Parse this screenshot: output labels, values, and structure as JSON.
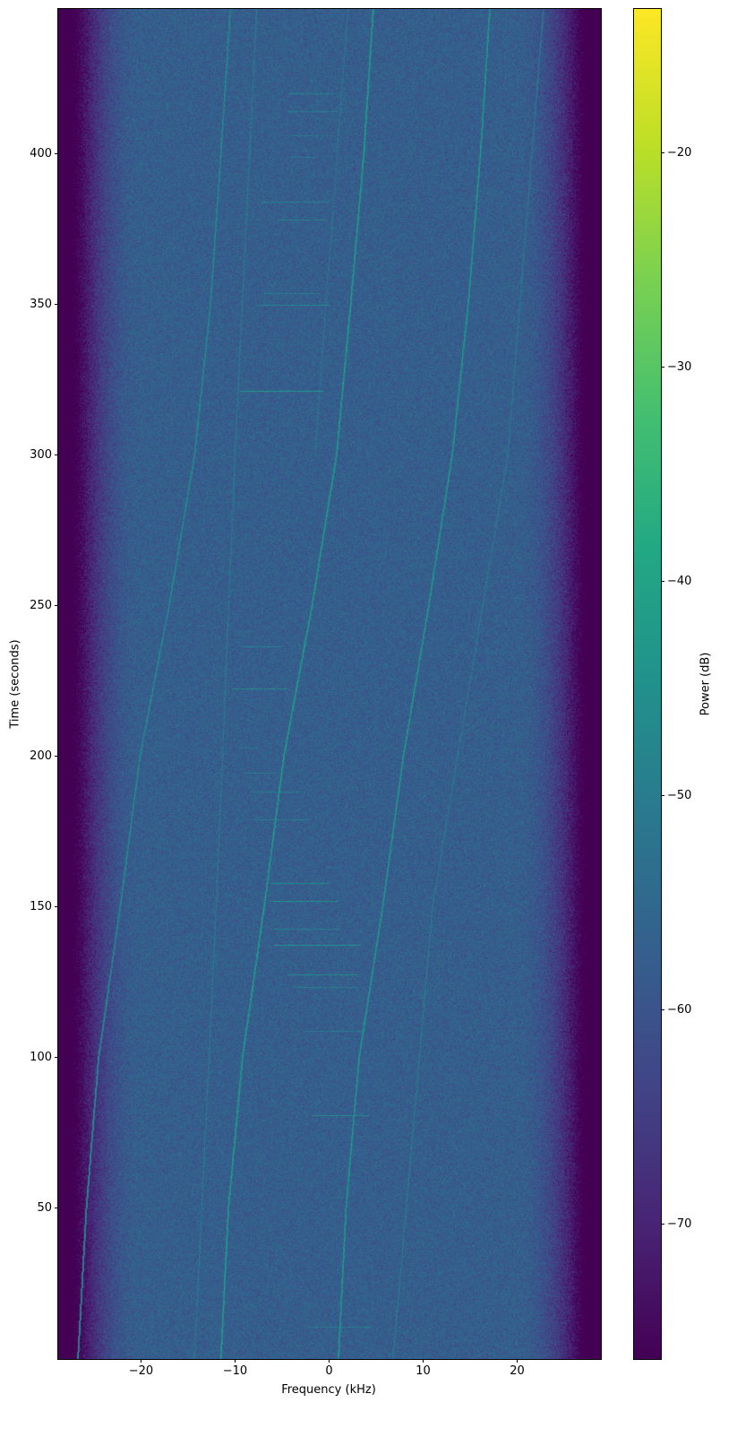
{
  "chart_data": {
    "type": "heatmap",
    "title": "",
    "xlabel": "Frequency (kHz)",
    "ylabel": "Time (seconds)",
    "colorbar_label": "Power (dB)",
    "colormap": "viridis",
    "xlim": [
      -28.8,
      28.9
    ],
    "ylim": [
      0,
      448
    ],
    "clim": [
      -76.3,
      -13.3
    ],
    "xticks": [
      -20,
      -10,
      0,
      10,
      20
    ],
    "xtick_labels": [
      "−20",
      "−10",
      "0",
      "10",
      "20"
    ],
    "yticks": [
      50,
      100,
      150,
      200,
      250,
      300,
      350,
      400
    ],
    "ytick_labels": [
      "50",
      "100",
      "150",
      "200",
      "250",
      "300",
      "350",
      "400"
    ],
    "cticks": [
      -20,
      -30,
      -40,
      -50,
      -60,
      -70
    ],
    "ctick_labels": [
      "−20",
      "−30",
      "−40",
      "−50",
      "−60",
      "−70"
    ],
    "noise_floor_db": -57.5,
    "passband_khz": [
      -20,
      20
    ],
    "stopband_edge_khz": 26.5,
    "traces": [
      {
        "level_db": -41,
        "points": [
          [
            0,
            -11.5
          ],
          [
            50,
            -10.7
          ],
          [
            100,
            -9.2
          ],
          [
            150,
            -6.9
          ],
          [
            200,
            -4.8
          ],
          [
            250,
            -1.8
          ],
          [
            300,
            0.8
          ],
          [
            350,
            2.3
          ],
          [
            400,
            3.7
          ],
          [
            448,
            4.7
          ]
        ]
      },
      {
        "level_db": -42,
        "points": [
          [
            0,
            1.0
          ],
          [
            50,
            1.8
          ],
          [
            100,
            3.2
          ],
          [
            150,
            5.7
          ],
          [
            200,
            7.9
          ],
          [
            250,
            10.6
          ],
          [
            300,
            13.1
          ],
          [
            350,
            14.8
          ],
          [
            400,
            16.1
          ],
          [
            448,
            17.1
          ]
        ]
      },
      {
        "level_db": -45,
        "points": [
          [
            0,
            -26.7
          ],
          [
            50,
            -25.8
          ],
          [
            100,
            -24.5
          ],
          [
            150,
            -22.2
          ],
          [
            200,
            -20.1
          ],
          [
            250,
            -17.0
          ],
          [
            300,
            -14.3
          ],
          [
            350,
            -12.6
          ],
          [
            400,
            -11.5
          ],
          [
            448,
            -10.5
          ]
        ]
      },
      {
        "level_db": -50,
        "points": [
          [
            0,
            -14.3
          ],
          [
            150,
            -12.0
          ],
          [
            300,
            -10.0
          ],
          [
            448,
            -7.7
          ]
        ]
      },
      {
        "level_db": -50,
        "points": [
          [
            0,
            6.8
          ],
          [
            150,
            11.0
          ],
          [
            300,
            19.0
          ],
          [
            448,
            22.8
          ]
        ]
      },
      {
        "level_db": -51,
        "points": [
          [
            300,
            -1.5
          ],
          [
            448,
            2.0
          ]
        ]
      }
    ],
    "bursts": [
      {
        "t": 10.7,
        "f": [
          -2.2,
          4.4
        ],
        "level_db": -50
      },
      {
        "t": 81,
        "f": [
          -1.8,
          4.2
        ],
        "level_db": -46
      },
      {
        "t": 109,
        "f": [
          -2.6,
          3.7
        ],
        "level_db": -50
      },
      {
        "t": 123.4,
        "f": [
          -3.7,
          2.9
        ],
        "level_db": -49
      },
      {
        "t": 127.6,
        "f": [
          -4.4,
          2.9
        ],
        "level_db": -45
      },
      {
        "t": 137.5,
        "f": [
          -5.9,
          3.3
        ],
        "level_db": -44
      },
      {
        "t": 142.7,
        "f": [
          -5.9,
          1.1
        ],
        "level_db": -48
      },
      {
        "t": 152,
        "f": [
          -6.2,
          0.9
        ],
        "level_db": -45
      },
      {
        "t": 158,
        "f": [
          -6.2,
          0.0
        ],
        "level_db": -46
      },
      {
        "t": 179,
        "f": [
          -8.1,
          -2.2
        ],
        "level_db": -50
      },
      {
        "t": 188.3,
        "f": [
          -8.4,
          -2.6
        ],
        "level_db": -50
      },
      {
        "t": 194.5,
        "f": [
          -9.0,
          -5.5
        ],
        "level_db": -50
      },
      {
        "t": 203,
        "f": [
          -9.7,
          -7.7
        ],
        "level_db": -51
      },
      {
        "t": 222.6,
        "f": [
          -10.3,
          -4.4
        ],
        "level_db": -46
      },
      {
        "t": 236.6,
        "f": [
          -9.3,
          -5.1
        ],
        "level_db": -49
      },
      {
        "t": 321.4,
        "f": [
          -9.5,
          -0.7
        ],
        "level_db": -43
      },
      {
        "t": 349.7,
        "f": [
          -7.3,
          0.0
        ],
        "level_db": -47
      },
      {
        "t": 353.8,
        "f": [
          -7.0,
          -1.1
        ],
        "level_db": -50
      },
      {
        "t": 378,
        "f": [
          -5.5,
          -0.4
        ],
        "level_db": -49
      },
      {
        "t": 384,
        "f": [
          -7.3,
          0.0
        ],
        "level_db": -49
      },
      {
        "t": 399,
        "f": [
          -4.0,
          -1.5
        ],
        "level_db": -51
      },
      {
        "t": 406,
        "f": [
          -4.0,
          -1.1
        ],
        "level_db": -51
      },
      {
        "t": 414,
        "f": [
          -4.4,
          0.9
        ],
        "level_db": -49
      },
      {
        "t": 420,
        "f": [
          -4.4,
          0.7
        ],
        "level_db": -49
      }
    ]
  }
}
